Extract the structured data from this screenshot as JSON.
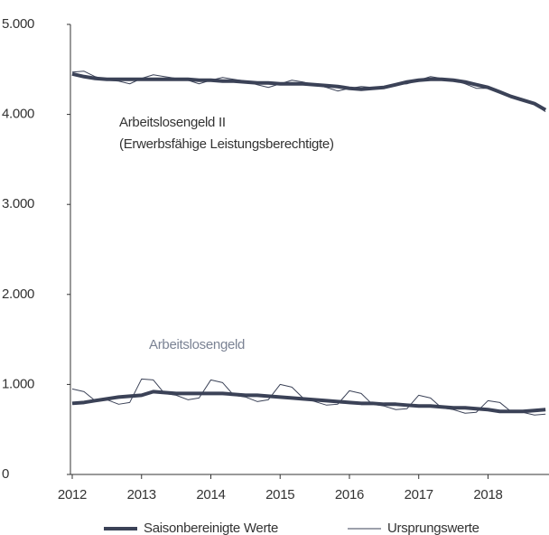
{
  "chart_data": {
    "type": "line",
    "x": [
      2012.0,
      2012.17,
      2012.33,
      2012.5,
      2012.67,
      2012.83,
      2013.0,
      2013.17,
      2013.33,
      2013.5,
      2013.67,
      2013.83,
      2014.0,
      2014.17,
      2014.33,
      2014.5,
      2014.67,
      2014.83,
      2015.0,
      2015.17,
      2015.33,
      2015.5,
      2015.67,
      2015.83,
      2016.0,
      2016.17,
      2016.33,
      2016.5,
      2016.67,
      2016.83,
      2017.0,
      2017.17,
      2017.33,
      2017.5,
      2017.67,
      2017.83,
      2018.0,
      2018.17,
      2018.33,
      2018.5,
      2018.67,
      2018.83
    ],
    "xlim": [
      2012,
      2018.88
    ],
    "xticks": [
      2012,
      2013,
      2014,
      2015,
      2016,
      2017,
      2018
    ],
    "ylim": [
      0,
      5000
    ],
    "yticks": [
      0,
      {
        "value": 1000,
        "label": "1.000"
      },
      {
        "value": 2000,
        "label": "2.000"
      },
      {
        "value": 3000,
        "label": "3.000"
      },
      {
        "value": 4000,
        "label": "4.000"
      },
      {
        "value": 5000,
        "label": "5.000"
      }
    ],
    "color": "#3b4257",
    "series": [
      {
        "width": 1,
        "values": [
          4470,
          4480,
          4420,
          4380,
          4370,
          4340,
          4400,
          4440,
          4420,
          4400,
          4380,
          4340,
          4380,
          4410,
          4390,
          4370,
          4330,
          4300,
          4340,
          4380,
          4360,
          4330,
          4300,
          4260,
          4290,
          4310,
          4300,
          4310,
          4330,
          4340,
          4380,
          4420,
          4400,
          4380,
          4340,
          4290,
          4290,
          4260,
          4210,
          4170,
          4110,
          4030
        ]
      },
      {
        "width": 4,
        "values": [
          4450,
          4420,
          4400,
          4390,
          4390,
          4390,
          4390,
          4390,
          4390,
          4390,
          4390,
          4380,
          4380,
          4370,
          4370,
          4360,
          4350,
          4350,
          4340,
          4340,
          4340,
          4330,
          4320,
          4310,
          4290,
          4280,
          4290,
          4300,
          4330,
          4360,
          4380,
          4390,
          4390,
          4380,
          4360,
          4330,
          4300,
          4250,
          4200,
          4160,
          4120,
          4050
        ]
      },
      {
        "width": 1,
        "values": [
          950,
          920,
          820,
          830,
          780,
          800,
          1060,
          1050,
          900,
          880,
          830,
          850,
          1050,
          1020,
          880,
          860,
          810,
          830,
          1000,
          970,
          850,
          810,
          770,
          780,
          930,
          900,
          780,
          760,
          720,
          730,
          880,
          850,
          740,
          720,
          680,
          690,
          820,
          800,
          700,
          690,
          660,
          670
        ]
      },
      {
        "width": 4,
        "values": [
          790,
          800,
          820,
          840,
          860,
          870,
          880,
          920,
          910,
          900,
          900,
          900,
          900,
          900,
          890,
          880,
          880,
          870,
          860,
          850,
          840,
          830,
          820,
          810,
          800,
          790,
          790,
          780,
          780,
          770,
          760,
          760,
          750,
          740,
          740,
          730,
          720,
          700,
          700,
          700,
          710,
          720
        ]
      }
    ],
    "annotations": [
      "Arbeitslosengeld II",
      "(Erwerbsfähige Leistungsberechtigte)",
      "Arbeitslosengeld"
    ],
    "legend": [
      {
        "label": "Saisonbereinigte Werte",
        "width": 4
      },
      {
        "label": "Ursprungswerte",
        "width": 1
      }
    ]
  }
}
